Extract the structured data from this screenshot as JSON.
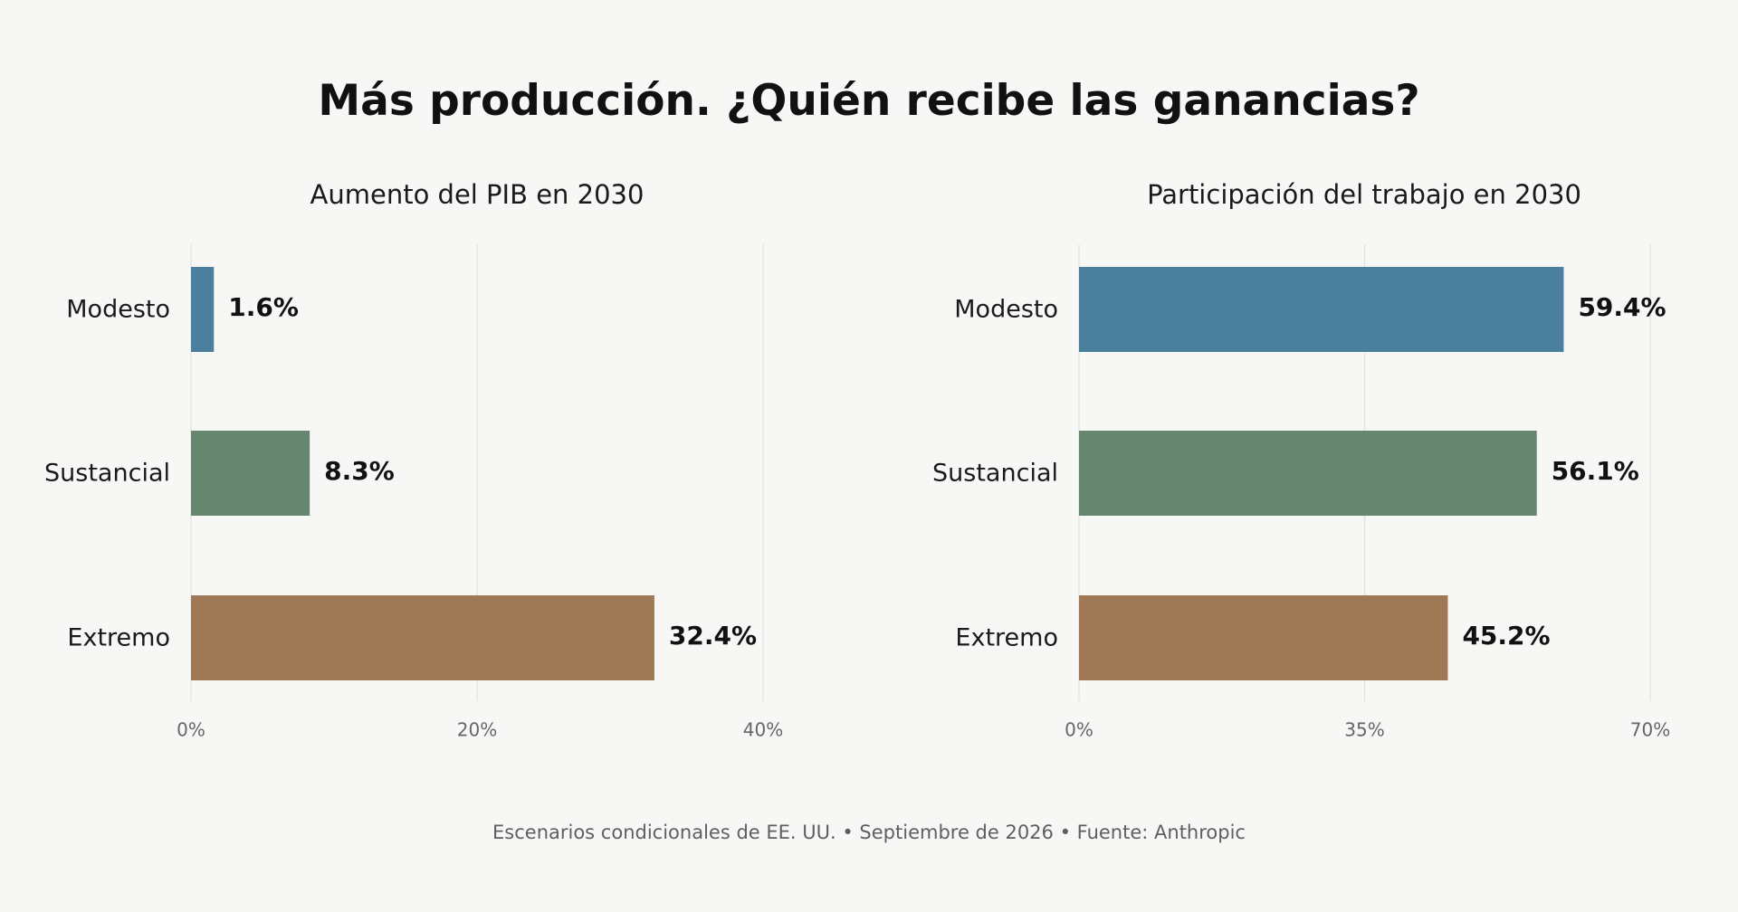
{
  "title": "Más producción. ¿Quién recibe las ganancias?",
  "footer": "Escenarios condicionales de EE. UU. • Septiembre de 2026 • Fuente: Anthropic",
  "colors": {
    "background": "#f7f7f5",
    "grid": "#e2e2df",
    "Modesto": "#4a7f9e",
    "Sustancial": "#668670",
    "Extremo": "#9f7955"
  },
  "chart_data": [
    {
      "type": "bar",
      "orientation": "horizontal",
      "title": "Aumento del PIB en 2030",
      "categories": [
        "Modesto",
        "Sustancial",
        "Extremo"
      ],
      "values": [
        1.6,
        8.3,
        32.4
      ],
      "value_labels": [
        "1.6%",
        "8.3%",
        "32.4%"
      ],
      "xlim": [
        0,
        40
      ],
      "xticks": [
        0,
        20,
        40
      ],
      "xtick_labels": [
        "0%",
        "20%",
        "40%"
      ],
      "grid": true
    },
    {
      "type": "bar",
      "orientation": "horizontal",
      "title": "Participación del trabajo en 2030",
      "categories": [
        "Modesto",
        "Sustancial",
        "Extremo"
      ],
      "values": [
        59.4,
        56.1,
        45.2
      ],
      "value_labels": [
        "59.4%",
        "56.1%",
        "45.2%"
      ],
      "xlim": [
        0,
        70
      ],
      "xticks": [
        0,
        35,
        70
      ],
      "xtick_labels": [
        "0%",
        "35%",
        "70%"
      ],
      "grid": true
    }
  ]
}
